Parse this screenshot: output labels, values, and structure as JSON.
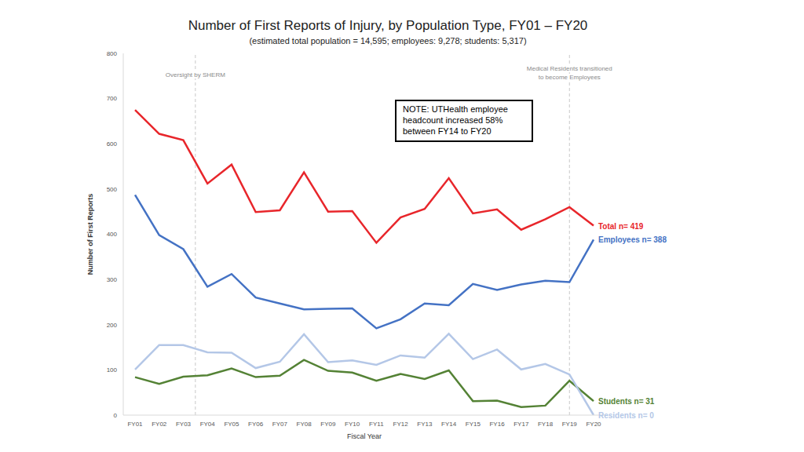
{
  "chart_data": {
    "type": "line",
    "title": "Number of First Reports of Injury, by Population Type, FY01 – FY20",
    "subtitle": "(estimated total population = 14,595; employees: 9,278; students: 5,317)",
    "x_label": "Fiscal Year",
    "y_label": "Number of First Reports",
    "categories": [
      "FY01",
      "FY02",
      "FY03",
      "FY04",
      "FY05",
      "FY06",
      "FY07",
      "FY08",
      "FY09",
      "FY10",
      "FY11",
      "FY12",
      "FY13",
      "FY14",
      "FY15",
      "FY16",
      "FY17",
      "FY18",
      "FY19",
      "FY20"
    ],
    "series": [
      {
        "name": "Total n= 419",
        "color": "#e8262b",
        "values": [
          675,
          622,
          608,
          512,
          554,
          449,
          453,
          537,
          450,
          451,
          381,
          437,
          456,
          524,
          446,
          455,
          410,
          433,
          460,
          419
        ]
      },
      {
        "name": "Employees n= 388",
        "color": "#4472c4",
        "values": [
          487,
          398,
          367,
          284,
          312,
          260,
          247,
          234,
          235,
          236,
          192,
          212,
          247,
          243,
          290,
          277,
          289,
          297,
          294,
          388
        ]
      },
      {
        "name": "Students n= 31",
        "color": "#548235",
        "values": [
          84,
          69,
          85,
          88,
          103,
          84,
          87,
          122,
          98,
          94,
          76,
          91,
          80,
          99,
          31,
          32,
          18,
          21,
          76,
          31
        ]
      },
      {
        "name": "Residents n= 0",
        "color": "#b4c7e7",
        "values": [
          101,
          155,
          155,
          139,
          138,
          104,
          118,
          179,
          117,
          121,
          111,
          132,
          127,
          180,
          124,
          145,
          101,
          113,
          90,
          0
        ]
      }
    ],
    "ylim": [
      0,
      800
    ],
    "yticks": [
      0,
      100,
      200,
      300,
      400,
      500,
      600,
      700,
      800
    ],
    "grid": false,
    "annotations": [
      {
        "text": [
          "Oversight by SHERM"
        ],
        "x": [
          "FY03",
          "FY04"
        ]
      },
      {
        "text": [
          "Medical Residents transitioned",
          "to become Employees"
        ],
        "x": "FY19"
      }
    ],
    "note": [
      "NOTE: UTHealth employee",
      "headcount increased 58%",
      "between FY14 to FY20"
    ]
  }
}
